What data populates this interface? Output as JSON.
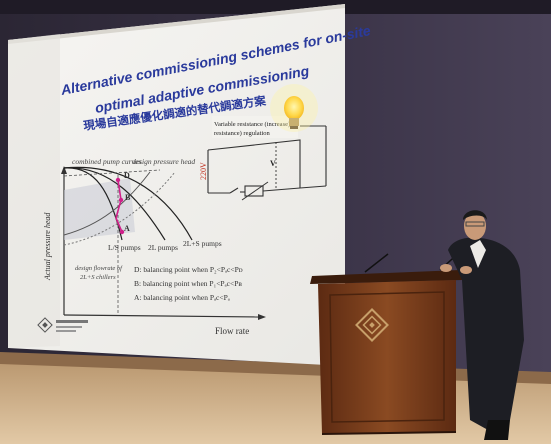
{
  "slide": {
    "title_line1": "Alternative commissioning schemes for on-site",
    "title_line2": "optimal adaptive commissioning",
    "title_chinese": "現場自適應優化調適的替代調適方案",
    "chart": {
      "ylabel": "Actual pressure head",
      "xlabel": "Flow rate",
      "curve_label_pumps": "combined pump curves",
      "curve_label_design": "design pressure head",
      "pump_labels": [
        "L/S pumps",
        "2L pumps",
        "2L+S pumps"
      ],
      "point_labels": [
        "D",
        "B",
        "A"
      ],
      "dashed_note_line1": "design flowrate of",
      "dashed_note_line2": "2L+S chillers",
      "legend": [
        "D: balancing point when P₂<Pₐc<Pᴅ",
        "B: balancing point when P₁<Pₐc<Pʙ",
        "A: balancing point when Pₐc<Pₐ"
      ]
    },
    "circuit": {
      "label_line1": "Variable resistance (increase)",
      "label_line2": "resistance) regulation",
      "voltage": "220V",
      "meter": "V"
    }
  },
  "colors": {
    "wall": "#3a3245",
    "slide_bg": "#f3f2ee",
    "title_blue": "#2a3a9c",
    "podium_wood": "#7a3d1c",
    "floor": "#c9a883"
  }
}
